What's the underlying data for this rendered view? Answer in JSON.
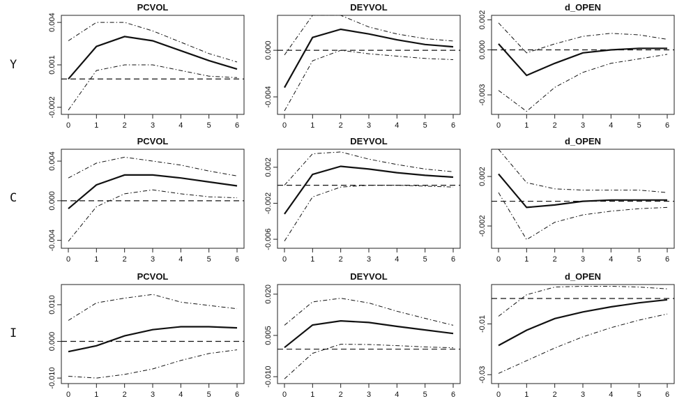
{
  "row_labels": [
    "Y",
    "C",
    "I"
  ],
  "chart_data": [
    {
      "type": "line",
      "title": "PCVOL",
      "row": "Y",
      "x": [
        0,
        1,
        2,
        3,
        4,
        5,
        6
      ],
      "xticks": [
        "0",
        "1",
        "2",
        "3",
        "4",
        "5",
        "6"
      ],
      "ylim": [
        -0.0025,
        0.0045
      ],
      "yticks": [
        -0.002,
        0.001,
        0.004
      ],
      "ytick_labels": [
        "-0.002",
        "0.001",
        "0.004"
      ],
      "reference_line": 0,
      "series": [
        {
          "role": "response",
          "values": [
            0.0,
            0.0023,
            0.003,
            0.0027,
            0.002,
            0.0013,
            0.0007
          ]
        },
        {
          "role": "upper",
          "values": [
            0.0027,
            0.004,
            0.004,
            0.0034,
            0.0026,
            0.0018,
            0.0012
          ]
        },
        {
          "role": "lower",
          "values": [
            -0.0022,
            0.0006,
            0.001,
            0.001,
            0.0006,
            0.0002,
            0.0001
          ]
        }
      ]
    },
    {
      "type": "line",
      "title": "DEYVOL",
      "row": "Y",
      "x": [
        0,
        1,
        2,
        3,
        4,
        5,
        6
      ],
      "xticks": [
        "0",
        "1",
        "2",
        "3",
        "4",
        "5",
        "6"
      ],
      "ylim": [
        -0.0055,
        0.003
      ],
      "yticks": [
        -0.004,
        0.0
      ],
      "ytick_labels": [
        "-0.004",
        "0.000"
      ],
      "reference_line": 0,
      "series": [
        {
          "role": "response",
          "values": [
            -0.0032,
            0.0011,
            0.0018,
            0.0014,
            0.0009,
            0.0005,
            0.0003
          ]
        },
        {
          "role": "upper",
          "values": [
            -0.0004,
            0.003,
            0.003,
            0.002,
            0.0014,
            0.001,
            0.0008
          ]
        },
        {
          "role": "lower",
          "values": [
            -0.0052,
            -0.0009,
            0.0,
            -0.0003,
            -0.0005,
            -0.0007,
            -0.0008
          ]
        }
      ]
    },
    {
      "type": "line",
      "title": "d_OPEN",
      "row": "Y",
      "x": [
        0,
        1,
        2,
        3,
        4,
        5,
        6
      ],
      "xticks": [
        "0",
        "1",
        "2",
        "3",
        "4",
        "5",
        "6"
      ],
      "ylim": [
        -0.0043,
        0.0023
      ],
      "yticks": [
        -0.003,
        0.0,
        0.002
      ],
      "ytick_labels": [
        "-0.003",
        "0.000",
        "0.002"
      ],
      "reference_line": 0,
      "series": [
        {
          "role": "response",
          "values": [
            0.0004,
            -0.0017,
            -0.0009,
            -0.0002,
            0.0,
            0.0001,
            0.0001
          ]
        },
        {
          "role": "upper",
          "values": [
            0.0018,
            -0.0002,
            0.0004,
            0.0009,
            0.0011,
            0.001,
            0.0007
          ]
        },
        {
          "role": "lower",
          "values": [
            -0.0027,
            -0.0041,
            -0.0025,
            -0.0015,
            -0.0009,
            -0.0006,
            -0.0003
          ]
        }
      ]
    },
    {
      "type": "line",
      "title": "PCVOL",
      "row": "C",
      "x": [
        0,
        1,
        2,
        3,
        4,
        5,
        6
      ],
      "xticks": [
        "0",
        "1",
        "2",
        "3",
        "4",
        "5",
        "6"
      ],
      "ylim": [
        -0.0048,
        0.0052
      ],
      "yticks": [
        -0.004,
        0.0,
        0.004
      ],
      "ytick_labels": [
        "-0.004",
        "0.000",
        "0.004"
      ],
      "reference_line": 0,
      "series": [
        {
          "role": "response",
          "values": [
            -0.0008,
            0.0016,
            0.0026,
            0.0026,
            0.0023,
            0.0019,
            0.0015
          ]
        },
        {
          "role": "upper",
          "values": [
            0.0023,
            0.0038,
            0.0044,
            0.004,
            0.0036,
            0.003,
            0.0025
          ]
        },
        {
          "role": "lower",
          "values": [
            -0.0041,
            -0.0006,
            0.0007,
            0.0011,
            0.0007,
            0.0004,
            0.0003
          ]
        }
      ]
    },
    {
      "type": "line",
      "title": "DEYVOL",
      "row": "C",
      "x": [
        0,
        1,
        2,
        3,
        4,
        5,
        6
      ],
      "xticks": [
        "0",
        "1",
        "2",
        "3",
        "4",
        "5",
        "6"
      ],
      "ylim": [
        -0.007,
        0.004
      ],
      "yticks": [
        -0.006,
        -0.002,
        0.002
      ],
      "ytick_labels": [
        "-0.006",
        "-0.002",
        "0.002"
      ],
      "reference_line": 0,
      "series": [
        {
          "role": "response",
          "values": [
            -0.0032,
            0.0012,
            0.0021,
            0.0018,
            0.0014,
            0.0011,
            0.0009
          ]
        },
        {
          "role": "upper",
          "values": [
            0.0,
            0.0035,
            0.0037,
            0.0029,
            0.0023,
            0.0018,
            0.0015
          ]
        },
        {
          "role": "lower",
          "values": [
            -0.0062,
            -0.0013,
            -0.0002,
            0.0,
            0.0,
            -0.0001,
            -0.0002
          ]
        }
      ]
    },
    {
      "type": "line",
      "title": "d_OPEN",
      "row": "C",
      "x": [
        0,
        1,
        2,
        3,
        4,
        5,
        6
      ],
      "xticks": [
        "0",
        "1",
        "2",
        "3",
        "4",
        "5",
        "6"
      ],
      "ylim": [
        -0.0038,
        0.0042
      ],
      "yticks": [
        -0.002,
        0.002
      ],
      "ytick_labels": [
        "-0.002",
        "0.002"
      ],
      "reference_line": 0,
      "series": [
        {
          "role": "response",
          "values": [
            0.0022,
            -0.0005,
            -0.0003,
            0.0,
            0.0001,
            0.0001,
            0.0001
          ]
        },
        {
          "role": "upper",
          "values": [
            0.0042,
            0.0015,
            0.001,
            0.0009,
            0.0009,
            0.0009,
            0.0007
          ]
        },
        {
          "role": "lower",
          "values": [
            0.0007,
            -0.0031,
            -0.0017,
            -0.0011,
            -0.0008,
            -0.0006,
            -0.0005
          ]
        }
      ]
    },
    {
      "type": "line",
      "title": "PCVOL",
      "row": "I",
      "x": [
        0,
        1,
        2,
        3,
        4,
        5,
        6
      ],
      "xticks": [
        "0",
        "1",
        "2",
        "3",
        "4",
        "5",
        "6"
      ],
      "ylim": [
        -0.0115,
        0.0155
      ],
      "yticks": [
        -0.01,
        0.0,
        0.01
      ],
      "ytick_labels": [
        "-0.010",
        "0.000",
        "0.010"
      ],
      "reference_line": 0,
      "series": [
        {
          "role": "response",
          "values": [
            -0.0028,
            -0.0012,
            0.0015,
            0.0032,
            0.004,
            0.004,
            0.0037
          ]
        },
        {
          "role": "upper",
          "values": [
            0.0057,
            0.0105,
            0.0118,
            0.0128,
            0.0107,
            0.0098,
            0.0089
          ]
        },
        {
          "role": "lower",
          "values": [
            -0.0095,
            -0.01,
            -0.009,
            -0.0075,
            -0.0052,
            -0.0033,
            -0.0023
          ]
        }
      ]
    },
    {
      "type": "line",
      "title": "DEYVOL",
      "row": "I",
      "x": [
        0,
        1,
        2,
        3,
        4,
        5,
        6
      ],
      "xticks": [
        "0",
        "1",
        "2",
        "3",
        "4",
        "5",
        "6"
      ],
      "ylim": [
        -0.0125,
        0.0235
      ],
      "yticks": [
        -0.01,
        0.005,
        0.02
      ],
      "ytick_labels": [
        "-0.010",
        "0.005",
        "0.020"
      ],
      "reference_line": 0,
      "series": [
        {
          "role": "response",
          "values": [
            0.0006,
            0.0088,
            0.0103,
            0.0097,
            0.0083,
            0.007,
            0.0057
          ]
        },
        {
          "role": "upper",
          "values": [
            0.0087,
            0.0172,
            0.0185,
            0.0168,
            0.0138,
            0.0112,
            0.0087
          ]
        },
        {
          "role": "lower",
          "values": [
            -0.0108,
            -0.0015,
            0.0018,
            0.0017,
            0.0013,
            0.0008,
            0.0005
          ]
        }
      ]
    },
    {
      "type": "line",
      "title": "d_OPEN",
      "row": "I",
      "x": [
        0,
        1,
        2,
        3,
        4,
        5,
        6
      ],
      "xticks": [
        "0",
        "1",
        "2",
        "3",
        "4",
        "5",
        "6"
      ],
      "ylim": [
        -0.0335,
        0.0055
      ],
      "yticks": [
        -0.03,
        -0.01
      ],
      "ytick_labels": [
        "-0.03",
        "-0.01"
      ],
      "reference_line": 0,
      "series": [
        {
          "role": "response",
          "values": [
            -0.0185,
            -0.0125,
            -0.0079,
            -0.0053,
            -0.0033,
            -0.0017,
            -0.0005
          ]
        },
        {
          "role": "upper",
          "values": [
            -0.007,
            0.0015,
            0.0045,
            0.0048,
            0.0048,
            0.0045,
            0.0038
          ]
        },
        {
          "role": "lower",
          "values": [
            -0.0295,
            -0.0245,
            -0.0195,
            -0.0151,
            -0.0115,
            -0.0085,
            -0.0061
          ]
        }
      ]
    }
  ]
}
